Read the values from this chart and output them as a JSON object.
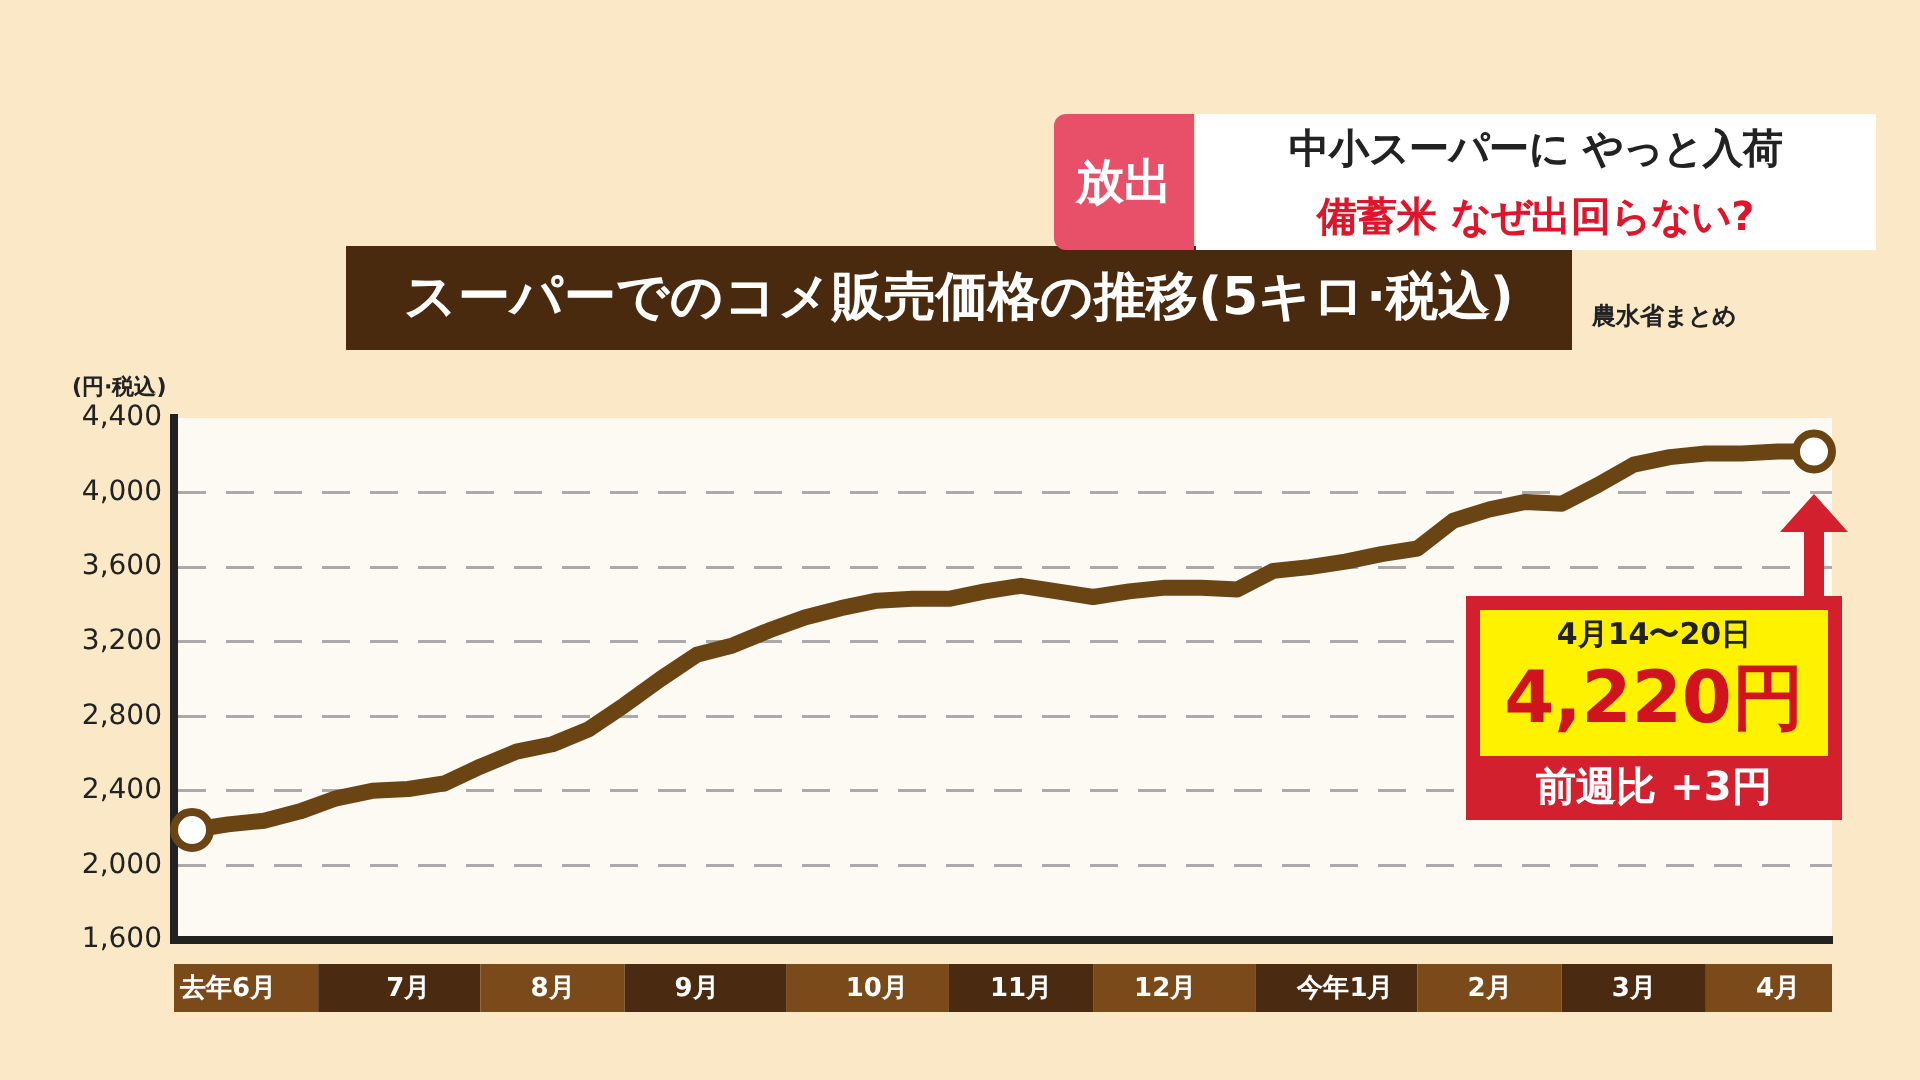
{
  "chart_data": {
    "type": "line",
    "title": "スーパーでのコメ販売価格の推移(5キロ·税込)",
    "ylabel": "(円·税込)",
    "annotations": [
      "放出",
      "中小スーパーに やっと入荷",
      "備蓄米 なぜ出回らない?",
      "農水省まとめ",
      "4月14〜20日",
      "4,220円",
      "前週比 +3円"
    ],
    "categories": [
      null,
      "去年6月",
      null,
      null,
      null,
      null,
      "7月",
      null,
      null,
      null,
      "8月",
      null,
      null,
      null,
      "9月",
      null,
      null,
      null,
      null,
      "10月",
      null,
      null,
      null,
      "11月",
      null,
      null,
      null,
      "12月",
      null,
      null,
      null,
      null,
      "今年1月",
      null,
      null,
      null,
      "2月",
      null,
      null,
      null,
      "3月",
      null,
      null,
      null,
      "4月",
      null
    ],
    "series": [
      {
        "color": "#6b4414",
        "values": [
          2190,
          2220,
          2240,
          2290,
          2360,
          2400,
          2410,
          2440,
          2530,
          2610,
          2650,
          2730,
          2860,
          3000,
          3130,
          3180,
          3260,
          3330,
          3380,
          3420,
          3430,
          3430,
          3470,
          3500,
          3470,
          3440,
          3470,
          3490,
          3490,
          3480,
          3580,
          3600,
          3630,
          3670,
          3700,
          3850,
          3910,
          3950,
          3940,
          4040,
          4150,
          4190,
          4210,
          4210,
          4220,
          4220
        ]
      }
    ],
    "ylim": [
      1600,
      4400
    ],
    "yticks": [
      {
        "value": 1600,
        "label": "1,600"
      },
      {
        "value": 2000,
        "label": "2,000"
      },
      {
        "value": 2400,
        "label": "2,400"
      },
      {
        "value": 2800,
        "label": "2,800"
      },
      {
        "value": 3200,
        "label": "3,200"
      },
      {
        "value": 3600,
        "label": "3,600"
      },
      {
        "value": 4000,
        "label": "4,000"
      },
      {
        "value": 4400,
        "label": "4,400"
      }
    ],
    "grid": "y",
    "legend": false,
    "line_style": "solid"
  }
}
